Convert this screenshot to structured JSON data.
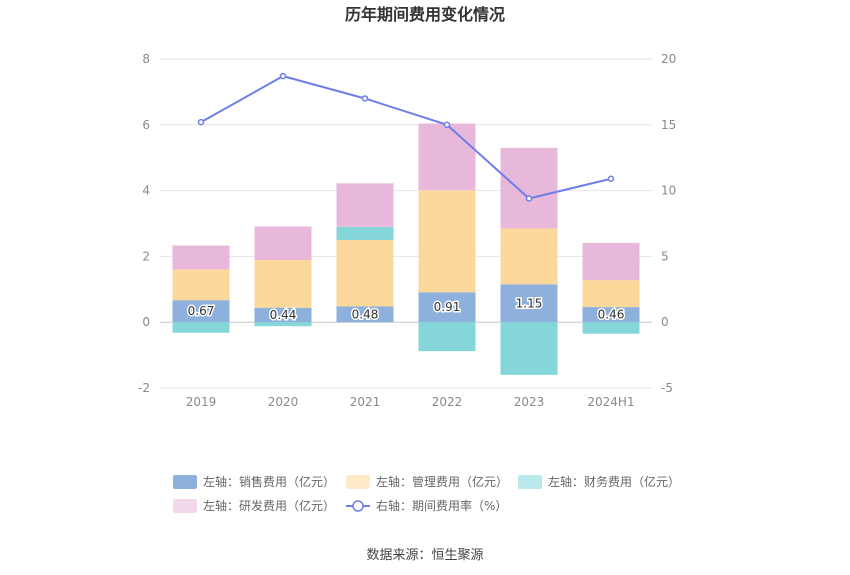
{
  "chart_data": {
    "type": "bar",
    "title": "历年期间费用变化情况",
    "categories": [
      "2019",
      "2020",
      "2021",
      "2022",
      "2023",
      "2024H1"
    ],
    "left_axis": {
      "ylim": [
        -2,
        8
      ],
      "ticks": [
        "-2",
        "0",
        "2",
        "4",
        "6",
        "8"
      ]
    },
    "right_axis": {
      "ylim": [
        -5,
        20
      ],
      "ticks": [
        "-5",
        "0",
        "5",
        "10",
        "15",
        "20"
      ]
    },
    "series": [
      {
        "name": "左轴：销售费用（亿元）",
        "kind": "bar",
        "axis": "left",
        "color": "#8eb0dc",
        "values": [
          0.67,
          0.44,
          0.48,
          0.91,
          1.15,
          0.46
        ],
        "labels": [
          "0.67",
          "0.44",
          "0.48",
          "0.91",
          "1.15",
          "0.46"
        ]
      },
      {
        "name": "左轴：管理费用（亿元）",
        "kind": "bar",
        "axis": "left",
        "color": "#fdd89b",
        "values": [
          0.93,
          1.45,
          2.02,
          3.1,
          1.7,
          0.82
        ]
      },
      {
        "name": "左轴：财务费用（亿元）",
        "kind": "bar",
        "axis": "left",
        "color": "#84d6d8",
        "values": [
          -0.32,
          -0.12,
          0.4,
          -0.88,
          -1.6,
          -0.35
        ]
      },
      {
        "name": "左轴：研发费用（亿元）",
        "kind": "bar",
        "axis": "left",
        "color": "#e8b8da",
        "values": [
          0.73,
          1.02,
          1.32,
          2.03,
          2.45,
          1.13
        ]
      },
      {
        "name": "右轴：期间费用率（%）",
        "kind": "line",
        "axis": "right",
        "color": "#6f7ee9",
        "values": [
          15.2,
          18.7,
          17.0,
          15.0,
          9.4,
          10.9
        ]
      }
    ],
    "legend_position": "bottom",
    "grid": true
  },
  "source": "数据来源：恒生聚源"
}
